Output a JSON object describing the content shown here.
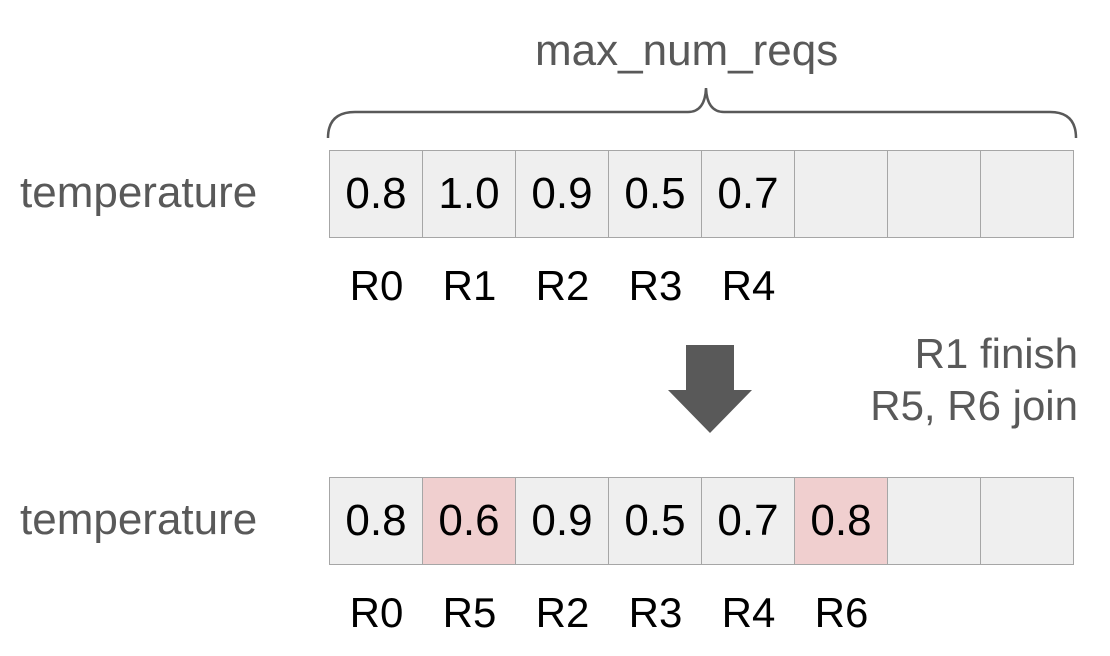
{
  "brace_label": "max_num_reqs",
  "row_label": "temperature",
  "before": {
    "cells": [
      {
        "value": "0.8",
        "id": "R0",
        "new": false
      },
      {
        "value": "1.0",
        "id": "R1",
        "new": false
      },
      {
        "value": "0.9",
        "id": "R2",
        "new": false
      },
      {
        "value": "0.5",
        "id": "R3",
        "new": false
      },
      {
        "value": "0.7",
        "id": "R4",
        "new": false
      },
      {
        "value": "",
        "id": "",
        "new": false
      },
      {
        "value": "",
        "id": "",
        "new": false
      },
      {
        "value": "",
        "id": "",
        "new": false
      }
    ]
  },
  "transition": {
    "line1": "R1 finish",
    "line2": "R5, R6 join",
    "icon": "down-arrow-icon"
  },
  "after": {
    "cells": [
      {
        "value": "0.8",
        "id": "R0",
        "new": false
      },
      {
        "value": "0.6",
        "id": "R5",
        "new": true
      },
      {
        "value": "0.9",
        "id": "R2",
        "new": false
      },
      {
        "value": "0.5",
        "id": "R3",
        "new": false
      },
      {
        "value": "0.7",
        "id": "R4",
        "new": false
      },
      {
        "value": "0.8",
        "id": "R6",
        "new": true
      },
      {
        "value": "",
        "id": "",
        "new": false
      },
      {
        "value": "",
        "id": "",
        "new": false
      }
    ]
  },
  "colors": {
    "cell": "#efefef",
    "new_cell": "#f0cfcf",
    "border": "#a6a6a6",
    "arrow": "#595959",
    "text_gray": "#595959"
  }
}
